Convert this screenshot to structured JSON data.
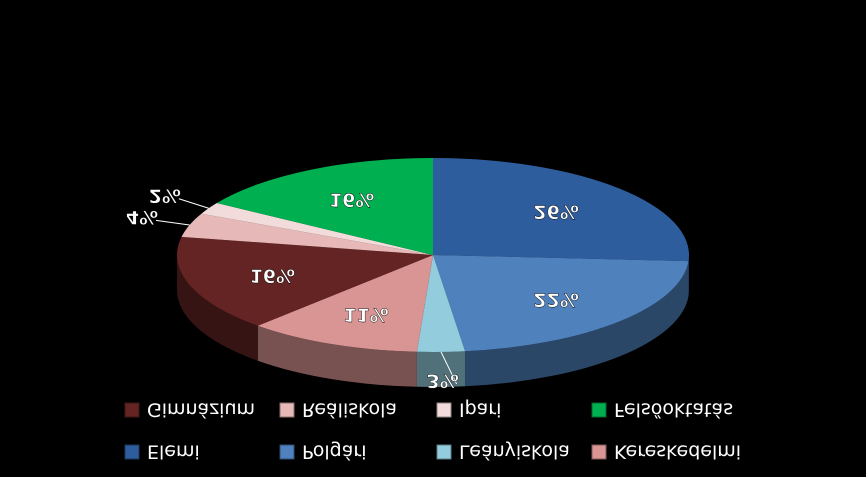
{
  "chart_data": {
    "type": "pie",
    "title": "",
    "legend_position": "bottom",
    "labels_shown": "percent",
    "note": "Figure is rendered vertically mirrored, as in the original image.",
    "slices": [
      {
        "name": "Elemi",
        "value": 26,
        "label": "26%",
        "color": "#2E5D9E"
      },
      {
        "name": "Polgári",
        "value": 22,
        "label": "22%",
        "color": "#4F81BD"
      },
      {
        "name": "Leányiskola",
        "value": 3,
        "label": "3%",
        "color": "#93CDDD"
      },
      {
        "name": "Kereskedelmi",
        "value": 11,
        "label": "11%",
        "color": "#D99594"
      },
      {
        "name": "Gimnázium",
        "value": 16,
        "label": "16%",
        "color": "#632423"
      },
      {
        "name": "Reáliskola",
        "value": 4,
        "label": "4%",
        "color": "#E6B9B8"
      },
      {
        "name": "Ipari",
        "value": 2,
        "label": "2%",
        "color": "#F2DCDB"
      },
      {
        "name": "Felsőoktatás",
        "value": 16,
        "label": "16%",
        "color": "#00B050"
      }
    ]
  }
}
